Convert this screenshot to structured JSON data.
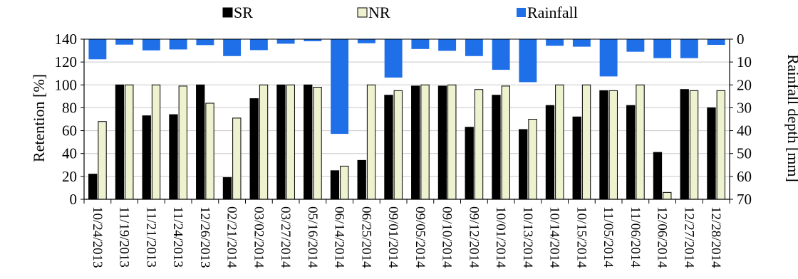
{
  "chart_data": {
    "type": "bar",
    "categories": [
      "10/24/2013",
      "11/19/2013",
      "11/21/2013",
      "11/24/2013",
      "12/26/2013",
      "02/21/2014",
      "03/02/2014",
      "03/27/2014",
      "05/16/2014",
      "06/14/2014",
      "06/25/2014",
      "09/01/2014",
      "09/05/2014",
      "09/10/2014",
      "09/12/2014",
      "10/01/2014",
      "10/13/2014",
      "10/14/2014",
      "10/15/2014",
      "11/05/2014",
      "11/06/2014",
      "12/06/2014",
      "12/27/2014",
      "12/28/2014"
    ],
    "series": [
      {
        "name": "SR",
        "axis": "left",
        "color": "#000000",
        "values": [
          22,
          100,
          73,
          74,
          100,
          19,
          88,
          100,
          100,
          25,
          34,
          91,
          99,
          99,
          63,
          91,
          61,
          82,
          72,
          95,
          82,
          41,
          96,
          80
        ]
      },
      {
        "name": "NR",
        "axis": "left",
        "color": "#eef2cf",
        "values": [
          68,
          100,
          100,
          99,
          84,
          71,
          100,
          100,
          98,
          29,
          100,
          95,
          100,
          100,
          96,
          99,
          70,
          100,
          100,
          95,
          100,
          6,
          95,
          95
        ]
      },
      {
        "name": "Rainfall",
        "axis": "right",
        "color": "#1f6fe8",
        "values": [
          8.8,
          2.4,
          4.9,
          4.5,
          2.6,
          7.4,
          4.8,
          2.0,
          0.9,
          41.4,
          1.8,
          16.8,
          4.3,
          5.1,
          7.4,
          13.4,
          18.8,
          2.9,
          3.3,
          16.3,
          5.5,
          8.3,
          8.3,
          2.5
        ]
      }
    ],
    "ylabel": "Retention [%]",
    "y2label": "Rainfall depth [mm]",
    "ylim": [
      0,
      140
    ],
    "y2lim": [
      0,
      70
    ],
    "y2_inverted": true,
    "yticks": [
      "0",
      "20",
      "40",
      "60",
      "80",
      "100",
      "120",
      "140"
    ],
    "y2ticks": [
      "0",
      "10",
      "20",
      "30",
      "40",
      "50",
      "60",
      "70"
    ],
    "grid": "horizontal",
    "legend": {
      "position": "top",
      "entries": [
        "SR",
        "NR",
        "Rainfall"
      ]
    }
  }
}
